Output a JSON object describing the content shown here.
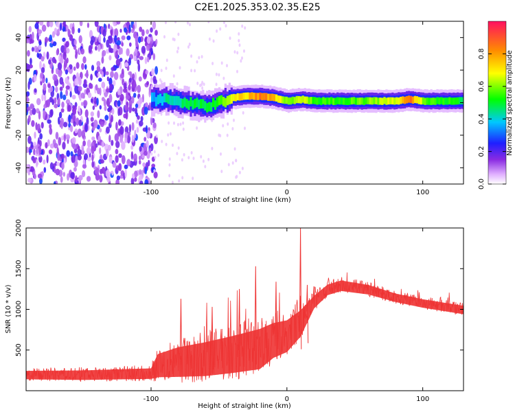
{
  "title": "C2E1.2025.353.02.35.E25",
  "chart_data": [
    {
      "type": "heatmap",
      "xlabel": "Height of straight line (km)",
      "ylabel": "Frequency (Hz)",
      "xlim": [
        -192,
        130
      ],
      "ylim": [
        -50,
        50
      ],
      "xticks": [
        -100,
        0,
        100
      ],
      "yticks": [
        -40,
        -20,
        0,
        20,
        40
      ],
      "colorbar": {
        "label": "Normalized spectral amplitude",
        "range": [
          0,
          1
        ],
        "ticks": [
          0.0,
          0.2,
          0.4,
          0.6,
          0.8
        ]
      },
      "description_regions": [
        {
          "x_from": -192,
          "x_to": -100,
          "kind": "broadband noise",
          "amplitude": [
            0.05,
            0.25
          ]
        },
        {
          "x_from": -100,
          "x_to": -60,
          "kind": "emerging trace",
          "freq_center": 2,
          "amplitude": [
            0.3,
            0.55
          ]
        },
        {
          "x_from": -60,
          "x_to": 130,
          "kind": "narrow trace",
          "freq_center": 1,
          "amplitude": [
            0.45,
            0.95
          ]
        }
      ],
      "trace": {
        "x": [
          -100,
          -90,
          -80,
          -70,
          -60,
          -50,
          -40,
          -30,
          -20,
          -10,
          0,
          10,
          20,
          40,
          60,
          80,
          90,
          100,
          110,
          130
        ],
        "freq": [
          2,
          2,
          1,
          -1,
          -2,
          0,
          3,
          4,
          4,
          3,
          1,
          2,
          1,
          1,
          1,
          1,
          2,
          1,
          1,
          1
        ],
        "amp": [
          0.35,
          0.45,
          0.45,
          0.5,
          0.5,
          0.55,
          0.7,
          0.75,
          0.85,
          0.75,
          0.6,
          0.7,
          0.55,
          0.55,
          0.6,
          0.7,
          0.9,
          0.6,
          0.55,
          0.5
        ]
      }
    },
    {
      "type": "line",
      "xlabel": "Height of straight line (km)",
      "ylabel": "SNR (10 * v/v)",
      "xlim": [
        -192,
        130
      ],
      "ylim": [
        0,
        2000
      ],
      "xticks": [
        -100,
        0,
        100
      ],
      "yticks": [
        500,
        1000,
        1500,
        2000
      ],
      "color": "#ee3333",
      "envelope": {
        "x": [
          -192,
          -150,
          -100,
          -95,
          -80,
          -60,
          -40,
          -20,
          -10,
          0,
          10,
          20,
          30,
          40,
          60,
          80,
          100,
          130
        ],
        "mean": [
          200,
          200,
          220,
          330,
          380,
          420,
          480,
          550,
          650,
          700,
          850,
          1100,
          1250,
          1300,
          1250,
          1150,
          1080,
          1000
        ],
        "amp": [
          80,
          90,
          100,
          220,
          280,
          320,
          350,
          380,
          330,
          300,
          250,
          120,
          100,
          100,
          90,
          80,
          80,
          80
        ]
      },
      "spikes": [
        {
          "x": -78,
          "y": 1130
        },
        {
          "x": -55,
          "y": 1030
        },
        {
          "x": -35,
          "y": 1250
        },
        {
          "x": -23,
          "y": 1530
        },
        {
          "x": -8,
          "y": 1340
        },
        {
          "x": 10,
          "y": 2000
        },
        {
          "x": 15,
          "y": 1300
        }
      ]
    }
  ]
}
